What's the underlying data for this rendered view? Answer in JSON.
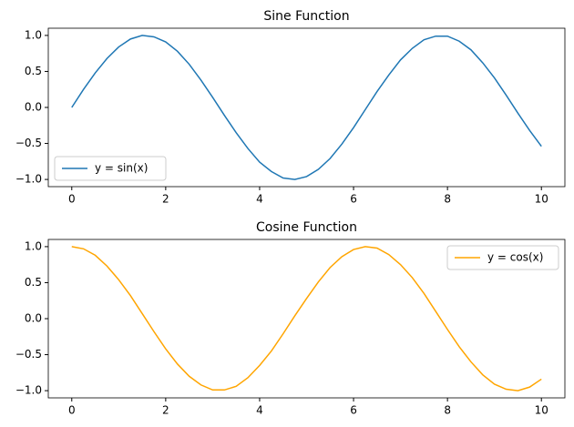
{
  "chart_data": [
    {
      "type": "line",
      "title": "Sine Function",
      "x": [
        0,
        0.25,
        0.5,
        0.75,
        1,
        1.25,
        1.5,
        1.75,
        2,
        2.25,
        2.5,
        2.75,
        3,
        3.25,
        3.5,
        3.75,
        4,
        4.25,
        4.5,
        4.75,
        5,
        5.25,
        5.5,
        5.75,
        6,
        6.25,
        6.5,
        6.75,
        7,
        7.25,
        7.5,
        7.75,
        8,
        8.25,
        8.5,
        8.75,
        9,
        9.25,
        9.5,
        9.75,
        10
      ],
      "series": [
        {
          "name": "y = sin(x)",
          "color": "#1f77b4",
          "values": [
            0,
            0.25,
            0.48,
            0.68,
            0.84,
            0.95,
            1,
            0.98,
            0.91,
            0.78,
            0.6,
            0.38,
            0.14,
            -0.11,
            -0.35,
            -0.57,
            -0.76,
            -0.89,
            -0.98,
            -1,
            -0.96,
            -0.86,
            -0.71,
            -0.51,
            -0.28,
            -0.03,
            0.22,
            0.45,
            0.66,
            0.82,
            0.94,
            0.99,
            0.99,
            0.92,
            0.8,
            0.62,
            0.41,
            0.17,
            -0.08,
            -0.32,
            -0.54
          ]
        }
      ],
      "xlim": [
        -0.5,
        10.5
      ],
      "ylim": [
        -1.1,
        1.1
      ],
      "xticks": [
        0,
        2,
        4,
        6,
        8,
        10
      ],
      "yticks": [
        {
          "value": -1,
          "label": "−1.0"
        },
        {
          "value": -0.5,
          "label": "−0.5"
        },
        {
          "value": 0,
          "label": "0.0"
        },
        {
          "value": 0.5,
          "label": "0.5"
        },
        {
          "value": 1,
          "label": "1.0"
        }
      ],
      "legend": "lower left"
    },
    {
      "type": "line",
      "title": "Cosine Function",
      "x": [
        0,
        0.25,
        0.5,
        0.75,
        1,
        1.25,
        1.5,
        1.75,
        2,
        2.25,
        2.5,
        2.75,
        3,
        3.25,
        3.5,
        3.75,
        4,
        4.25,
        4.5,
        4.75,
        5,
        5.25,
        5.5,
        5.75,
        6,
        6.25,
        6.5,
        6.75,
        7,
        7.25,
        7.5,
        7.75,
        8,
        8.25,
        8.5,
        8.75,
        9,
        9.25,
        9.5,
        9.75,
        10
      ],
      "series": [
        {
          "name": "y = cos(x)",
          "color": "#ffa500",
          "values": [
            1,
            0.97,
            0.88,
            0.73,
            0.54,
            0.32,
            0.07,
            -0.18,
            -0.42,
            -0.63,
            -0.8,
            -0.92,
            -0.99,
            -0.99,
            -0.94,
            -0.82,
            -0.65,
            -0.45,
            -0.21,
            0.04,
            0.28,
            0.51,
            0.71,
            0.86,
            0.96,
            1,
            0.98,
            0.89,
            0.75,
            0.57,
            0.35,
            0.1,
            -0.15,
            -0.39,
            -0.6,
            -0.78,
            -0.91,
            -0.98,
            -1,
            -0.95,
            -0.84
          ]
        }
      ],
      "xlim": [
        -0.5,
        10.5
      ],
      "ylim": [
        -1.1,
        1.1
      ],
      "xticks": [
        0,
        2,
        4,
        6,
        8,
        10
      ],
      "yticks": [
        {
          "value": -1,
          "label": "−1.0"
        },
        {
          "value": -0.5,
          "label": "−0.5"
        },
        {
          "value": 0,
          "label": "0.0"
        },
        {
          "value": 0.5,
          "label": "0.5"
        },
        {
          "value": 1,
          "label": "1.0"
        }
      ],
      "legend": "upper right"
    }
  ]
}
